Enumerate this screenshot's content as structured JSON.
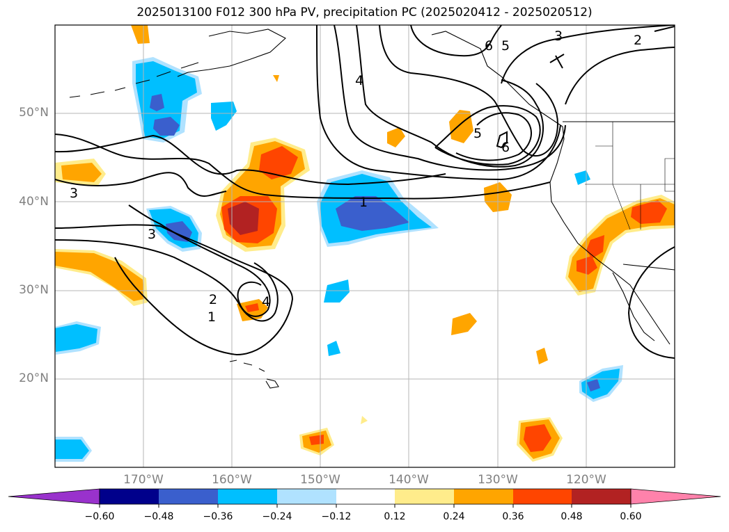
{
  "title": "2025013100 F012 300 hPa PV, precipitation PC (2025020412 - 2025020512)",
  "chart_data": {
    "type": "map",
    "title": "2025013100 F012 300 hPa PV, precipitation PC (2025020412 - 2025020512)",
    "map_extent": {
      "lon_min": -180,
      "lon_max": -110,
      "lat_min": 10,
      "lat_max": 60
    },
    "grid": true,
    "lat_ticks": [
      {
        "value": 20,
        "label": "20°N"
      },
      {
        "value": 30,
        "label": "30°N"
      },
      {
        "value": 40,
        "label": "40°N"
      },
      {
        "value": 50,
        "label": "50°N"
      }
    ],
    "lon_ticks": [
      {
        "value": -170,
        "label": "170°W"
      },
      {
        "value": -160,
        "label": "160°W"
      },
      {
        "value": -150,
        "label": "150°W"
      },
      {
        "value": -140,
        "label": "140°W"
      },
      {
        "value": -130,
        "label": "130°W"
      },
      {
        "value": -120,
        "label": "120°W"
      }
    ],
    "colorbar": {
      "extend": "both",
      "levels": [
        -0.6,
        -0.48,
        -0.36,
        -0.24,
        -0.12,
        0.12,
        0.24,
        0.36,
        0.48,
        0.6
      ],
      "tick_labels": [
        "−0.60",
        "−0.48",
        "−0.36",
        "−0.24",
        "−0.12",
        "0.12",
        "0.24",
        "0.36",
        "0.48",
        "0.60"
      ],
      "colors": [
        "#9932cc",
        "#00008b",
        "#3a5fcd",
        "#00bfff",
        "#b0e2ff",
        "#ffffff",
        "#ffec8b",
        "#ffa500",
        "#ff4500",
        "#b22222",
        "#ff82ab"
      ]
    },
    "pv_contour_labels": [
      {
        "text": "1",
        "lon": -145.5,
        "lat": 40.0
      },
      {
        "text": "1",
        "lon": -162.0,
        "lat": 27.3
      },
      {
        "text": "2",
        "lon": -162.0,
        "lat": 29.0
      },
      {
        "text": "3",
        "lon": -177.7,
        "lat": 41.1
      },
      {
        "text": "3",
        "lon": -168.8,
        "lat": 36.5
      },
      {
        "text": "4",
        "lon": -157.0,
        "lat": 29.0
      },
      {
        "text": "4",
        "lon": -145.5,
        "lat": 54.0
      },
      {
        "text": "5",
        "lon": -132.0,
        "lat": 47.8
      },
      {
        "text": "5",
        "lon": -126.9,
        "lat": 57.7
      },
      {
        "text": "6",
        "lon": -129.0,
        "lat": 46.5
      },
      {
        "text": "6",
        "lon": -128.9,
        "lat": 57.8
      },
      {
        "text": "3",
        "lon": -123.3,
        "lat": 58.8
      },
      {
        "text": "2",
        "lon": -118.1,
        "lat": 58.7
      }
    ]
  }
}
